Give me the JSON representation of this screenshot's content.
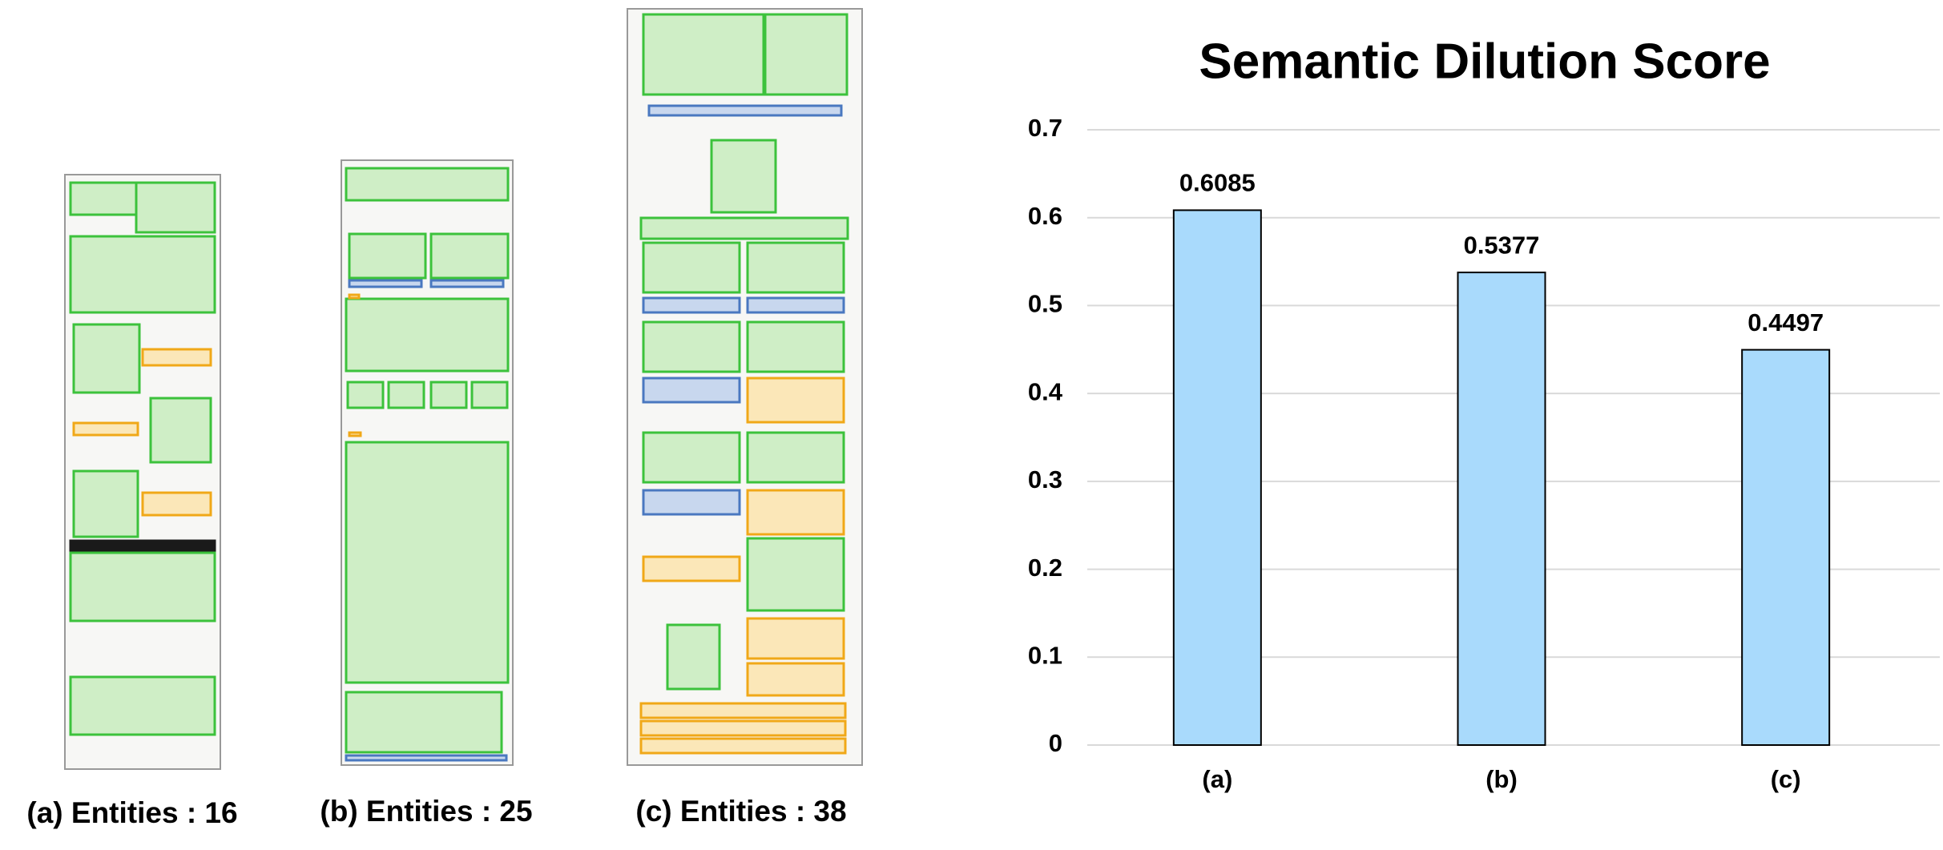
{
  "chart_data": {
    "type": "bar",
    "title": "Semantic Dilution Score",
    "categories": [
      "(a)",
      "(b)",
      "(c)"
    ],
    "values": [
      0.6085,
      0.5377,
      0.4497
    ],
    "color": "#a9dafc",
    "ylim": [
      0,
      0.7
    ],
    "yticks": [
      0,
      0.1,
      0.2,
      0.3,
      0.4,
      0.5,
      0.6,
      0.7
    ],
    "grid": true
  },
  "panels": [
    {
      "caption": "(a) Entities : 16"
    },
    {
      "caption": "(b) Entities : 25"
    },
    {
      "caption": "(c) Entities : 38"
    }
  ]
}
